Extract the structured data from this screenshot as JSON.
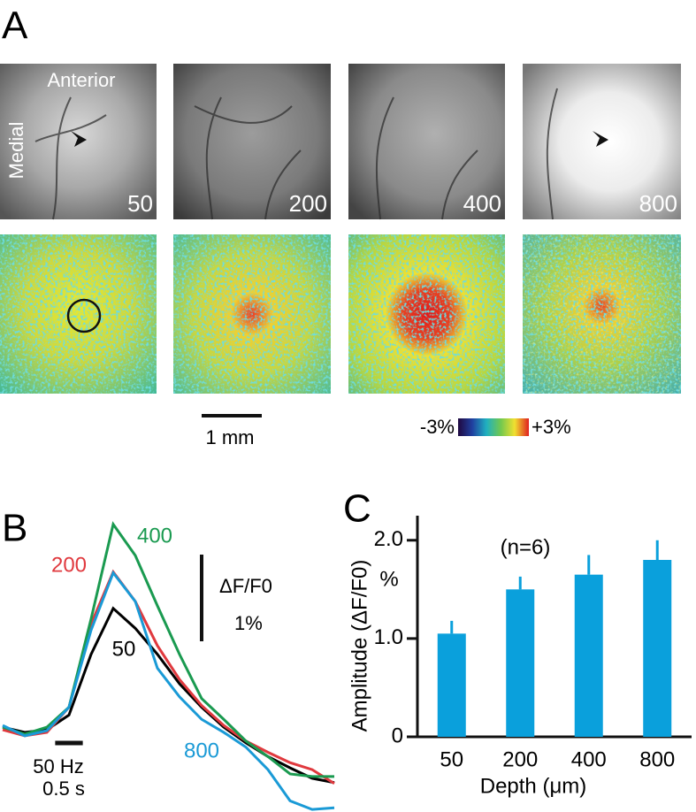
{
  "panel_a": {
    "label": "A",
    "anterior": "Anterior",
    "medial": "Medial",
    "depths": [
      "50",
      "200",
      "400",
      "800"
    ],
    "scale_bar": "1 mm",
    "colorbar_min": "-3%",
    "colorbar_max": "+3%"
  },
  "chart_data": [
    {
      "type": "line",
      "panel_label": "B",
      "x": [
        0,
        0.4,
        0.8,
        1.2,
        1.6,
        2.0,
        2.4,
        2.8,
        3.2,
        3.6,
        4.0,
        4.4,
        4.8,
        5.2,
        5.6,
        6.0
      ],
      "series": [
        {
          "name": "50",
          "color": "#000000",
          "values": [
            0.03,
            -0.03,
            0,
            0.17,
            0.87,
            1.4,
            1.17,
            0.87,
            0.53,
            0.26,
            0.03,
            -0.15,
            -0.31,
            -0.44,
            -0.56,
            -0.61
          ]
        },
        {
          "name": "200",
          "color": "#e0393e",
          "values": [
            0,
            -0.07,
            -0.03,
            0.26,
            1.22,
            1.82,
            1.48,
            0.97,
            0.58,
            0.28,
            0.05,
            -0.13,
            -0.26,
            -0.38,
            -0.46,
            -0.62
          ]
        },
        {
          "name": "400",
          "color": "#1a9a50",
          "values": [
            0.03,
            -0.05,
            0.03,
            0.26,
            1.28,
            2.37,
            2.01,
            1.43,
            0.87,
            0.36,
            0.12,
            -0.13,
            -0.31,
            -0.51,
            -0.54,
            -0.54
          ]
        },
        {
          "name": "800",
          "color": "#1a9ad6",
          "values": [
            0.05,
            -0.07,
            -0.01,
            0.26,
            1.15,
            1.81,
            1.48,
            0.71,
            0.38,
            0.12,
            -0.03,
            -0.2,
            -0.46,
            -0.82,
            -0.92,
            -0.9
          ]
        }
      ],
      "scale_bar": {
        "unit": "ΔF/F0",
        "label": "1%",
        "value": 1
      },
      "stimulus": {
        "label": "50 Hz",
        "duration_label": "0.5 s",
        "start": 0.95,
        "duration": 0.5
      }
    },
    {
      "type": "bar",
      "panel_label": "C",
      "categories": [
        "50",
        "200",
        "400",
        "800"
      ],
      "values": [
        1.05,
        1.5,
        1.65,
        1.8
      ],
      "errors": [
        0.13,
        0.13,
        0.2,
        0.2
      ],
      "color": "#0aa0dc",
      "ylim": [
        0,
        2.25
      ],
      "yticks": [
        0,
        {
          "value": 1,
          "label": "1.0"
        },
        {
          "value": 2,
          "label": "2.0"
        }
      ],
      "ylabel": "Amplitude (ΔF/F0)",
      "y_unit": "%",
      "xlabel": "Depth (μm)",
      "annotation": "(n=6)"
    }
  ]
}
